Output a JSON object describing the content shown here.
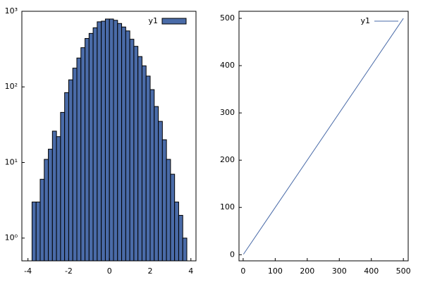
{
  "chart_data": [
    {
      "type": "histogram",
      "bins": [
        -3.8,
        -3.6,
        -3.4,
        -3.2,
        -3.0,
        -2.8,
        -2.6,
        -2.4,
        -2.2,
        -2.0,
        -1.8,
        -1.6,
        -1.4,
        -1.2,
        -1.0,
        -0.8,
        -0.6,
        -0.4,
        -0.2,
        0.0,
        0.2,
        0.4,
        0.6,
        0.8,
        1.0,
        1.2,
        1.4,
        1.6,
        1.8,
        2.0,
        2.2,
        2.4,
        2.6,
        2.8,
        3.0,
        3.2,
        3.4,
        3.6,
        3.8
      ],
      "series": [
        {
          "name": "y1",
          "color": "#4a6ba8",
          "values": [
            3,
            3,
            6,
            11,
            15,
            26,
            22,
            46,
            84,
            124,
            177,
            241,
            330,
            437,
            510,
            605,
            726,
            740,
            790,
            790,
            760,
            690,
            620,
            550,
            427,
            344,
            252,
            190,
            139,
            92,
            55,
            35,
            20,
            11,
            7,
            3,
            2,
            1
          ]
        }
      ],
      "xlim": [
        -4.3,
        4.25
      ],
      "xticks": [
        -4,
        -2,
        0,
        2,
        4
      ],
      "ylim": [
        0.5,
        1000
      ],
      "ylog": true,
      "yticks": [
        {
          "value": 1,
          "label": "10⁰"
        },
        {
          "value": 10,
          "label": "10¹"
        },
        {
          "value": 100,
          "label": "10²"
        },
        {
          "value": 1000,
          "label": "10³"
        }
      ],
      "legend": "upper right"
    },
    {
      "type": "line",
      "x": [
        1,
        500
      ],
      "series": [
        {
          "name": "y1",
          "color": "#4a6ba8",
          "values": [
            1,
            500
          ]
        }
      ],
      "xlim": [
        -13,
        515
      ],
      "xticks": [
        0,
        100,
        200,
        300,
        400,
        500
      ],
      "ylim": [
        -13,
        515
      ],
      "yticks": [
        0,
        100,
        200,
        300,
        400,
        500
      ],
      "legend": "upper right"
    }
  ]
}
